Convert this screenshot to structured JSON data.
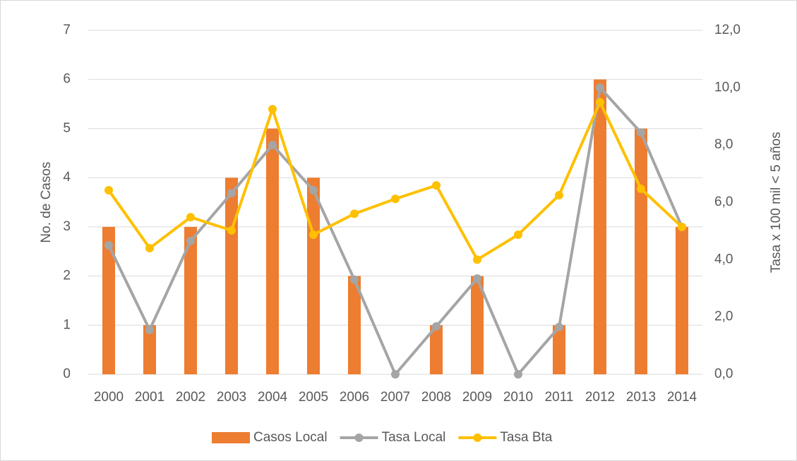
{
  "chart_data": {
    "type": "bar-line",
    "categories": [
      "2000",
      "2001",
      "2002",
      "2003",
      "2004",
      "2005",
      "2006",
      "2007",
      "2008",
      "2009",
      "2010",
      "2011",
      "2012",
      "2013",
      "2014"
    ],
    "series": [
      {
        "name": "Casos Local",
        "type": "bar",
        "color": "#ed7d31",
        "values": [
          3,
          1,
          3,
          4,
          5,
          4,
          2,
          0,
          1,
          2,
          0,
          1,
          6,
          5,
          3
        ]
      },
      {
        "name": "Tasa Local",
        "type": "line",
        "axis": "y2",
        "color": "#a5a5a5",
        "values": [
          4.5,
          1.55,
          4.65,
          6.32,
          8.0,
          6.42,
          3.3,
          0,
          1.67,
          3.34,
          0,
          1.65,
          10.0,
          8.43,
          5.14
        ]
      },
      {
        "name": "Tasa Bta",
        "type": "line",
        "axis": "y2",
        "color": "#ffc000",
        "values": [
          6.42,
          4.4,
          5.48,
          5.02,
          9.25,
          4.87,
          5.6,
          6.12,
          6.59,
          4.0,
          4.87,
          6.25,
          9.49,
          6.47,
          5.14
        ]
      }
    ],
    "ylabel": "No. de Casos",
    "y2label": "Tasa x 100 mil < 5 años",
    "ylim": [
      0,
      7
    ],
    "yticks": [
      0,
      1,
      2,
      3,
      4,
      5,
      6,
      7
    ],
    "y2lim": [
      0,
      12
    ],
    "y2ticks": [
      {
        "value": 0,
        "label": "0,0"
      },
      {
        "value": 2,
        "label": "2,0"
      },
      {
        "value": 4,
        "label": "4,0"
      },
      {
        "value": 6,
        "label": "6,0"
      },
      {
        "value": 8,
        "label": "8,0"
      },
      {
        "value": 10,
        "label": "10,0"
      },
      {
        "value": 12,
        "label": "12,0"
      }
    ],
    "grid": true,
    "legend": "bottom"
  }
}
